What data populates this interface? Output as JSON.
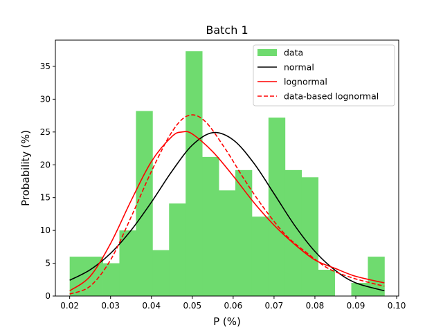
{
  "chart_data": {
    "type": "bar",
    "title": "Batch 1",
    "xlabel": "P (%)",
    "ylabel": "Probability (%)",
    "xlim": [
      0.0165,
      0.1005
    ],
    "ylim": [
      0,
      39
    ],
    "xticks": [
      "0.02",
      "0.03",
      "0.04",
      "0.05",
      "0.06",
      "0.07",
      "0.08",
      "0.09",
      "0.10"
    ],
    "xtick_values": [
      0.02,
      0.03,
      0.04,
      0.05,
      0.06,
      0.07,
      0.08,
      0.09,
      0.1
    ],
    "yticks": [
      "0",
      "5",
      "10",
      "15",
      "20",
      "25",
      "30",
      "35"
    ],
    "ytick_values": [
      0,
      5,
      10,
      15,
      20,
      25,
      30,
      35
    ],
    "grid": false,
    "legend_position": "top-right",
    "histogram": {
      "name": "data",
      "color": "#6fdb6f",
      "bin_start": 0.02,
      "bin_width": 0.004053,
      "values": [
        6.0,
        6.0,
        5.0,
        10.0,
        28.2,
        7.0,
        14.1,
        37.3,
        21.2,
        16.1,
        19.2,
        12.1,
        27.2,
        19.2,
        18.1,
        4.0,
        0.0,
        2.0,
        6.0,
        0.0
      ]
    },
    "series": [
      {
        "name": "normal",
        "color": "#000000",
        "dash": "solid",
        "x": [
          0.02,
          0.025,
          0.03,
          0.035,
          0.04,
          0.045,
          0.05,
          0.055,
          0.06,
          0.065,
          0.07,
          0.075,
          0.08,
          0.085,
          0.09,
          0.097
        ],
        "y": [
          2.4,
          4.0,
          6.5,
          10.0,
          14.3,
          19.0,
          23.0,
          24.9,
          23.8,
          20.3,
          15.6,
          10.8,
          6.8,
          3.9,
          2.0,
          0.8
        ]
      },
      {
        "name": "lognormal",
        "color": "#ff0000",
        "dash": "solid",
        "x": [
          0.02,
          0.025,
          0.03,
          0.035,
          0.04,
          0.045,
          0.0475,
          0.05,
          0.055,
          0.06,
          0.065,
          0.07,
          0.075,
          0.08,
          0.085,
          0.09,
          0.097
        ],
        "y": [
          0.8,
          3.0,
          8.0,
          14.5,
          20.5,
          24.3,
          25.0,
          24.7,
          22.0,
          18.3,
          14.3,
          10.8,
          7.9,
          5.5,
          4.2,
          3.0,
          2.0
        ]
      },
      {
        "name": "data-based lognormal",
        "color": "#ff0000",
        "dash": "dashed",
        "x": [
          0.02,
          0.025,
          0.03,
          0.035,
          0.04,
          0.045,
          0.049,
          0.053,
          0.058,
          0.063,
          0.068,
          0.073,
          0.078,
          0.083,
          0.088,
          0.093,
          0.097
        ],
        "y": [
          0.3,
          1.5,
          5.5,
          12.0,
          19.0,
          25.0,
          27.5,
          26.7,
          22.5,
          17.5,
          13.0,
          9.2,
          6.6,
          4.3,
          3.0,
          2.1,
          1.5
        ]
      }
    ]
  }
}
